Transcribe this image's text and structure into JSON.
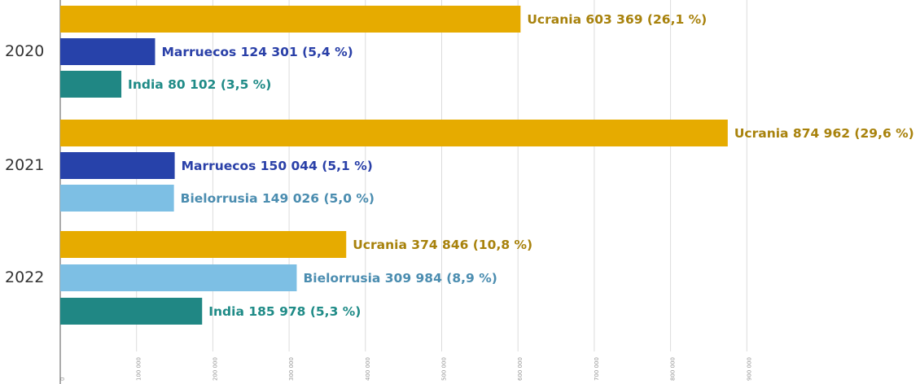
{
  "chart_data": {
    "type": "hbar-grouped",
    "categories": [
      "2020",
      "2021",
      "2022"
    ],
    "bars": [
      [
        {
          "value": 603369,
          "label": "Ucrania 603 369 (26,1 %)",
          "color": "#e6ab00",
          "label_color": "#a8820c"
        },
        {
          "value": 124301,
          "label": "Marruecos 124 301 (5,4 %)",
          "color": "#2742aa",
          "label_color": "#2a40a8"
        },
        {
          "value": 80102,
          "label": "India 80 102 (3,5 %)",
          "color": "#208784",
          "label_color": "#1f8b87"
        }
      ],
      [
        {
          "value": 874962,
          "label": "Ucrania 874 962 (29,6 %)",
          "color": "#e6ab00",
          "label_color": "#a8820c"
        },
        {
          "value": 150044,
          "label": "Marruecos 150 044 (5,1 %)",
          "color": "#2742aa",
          "label_color": "#2a40a8"
        },
        {
          "value": 149026,
          "label": "Bielorrusia 149 026 (5,0 %)",
          "color": "#7dbfe4",
          "label_color": "#4b8db0"
        }
      ],
      [
        {
          "value": 374846,
          "label": "Ucrania 374 846 (10,8 %)",
          "color": "#e6ab00",
          "label_color": "#a8820c"
        },
        {
          "value": 309984,
          "label": "Bielorrusia 309 984 (8,9 %)",
          "color": "#7dbfe4",
          "label_color": "#4b8db0"
        },
        {
          "value": 185978,
          "label": "India 185 978 (5,3 %)",
          "color": "#208784",
          "label_color": "#1f8b87"
        }
      ]
    ],
    "xlim": [
      0,
      1000000
    ],
    "xticks": [
      0,
      {
        "value": 100000,
        "label": "100 000"
      },
      {
        "value": 200000,
        "label": "200 000"
      },
      {
        "value": 300000,
        "label": "300 000"
      },
      {
        "value": 400000,
        "label": "400 000"
      },
      {
        "value": 500000,
        "label": "500 000"
      },
      {
        "value": 600000,
        "label": "600 000"
      },
      {
        "value": 700000,
        "label": "700 000"
      },
      {
        "value": 800000,
        "label": "800 000"
      },
      {
        "value": 900000,
        "label": "900 000"
      }
    ],
    "grid": true
  }
}
